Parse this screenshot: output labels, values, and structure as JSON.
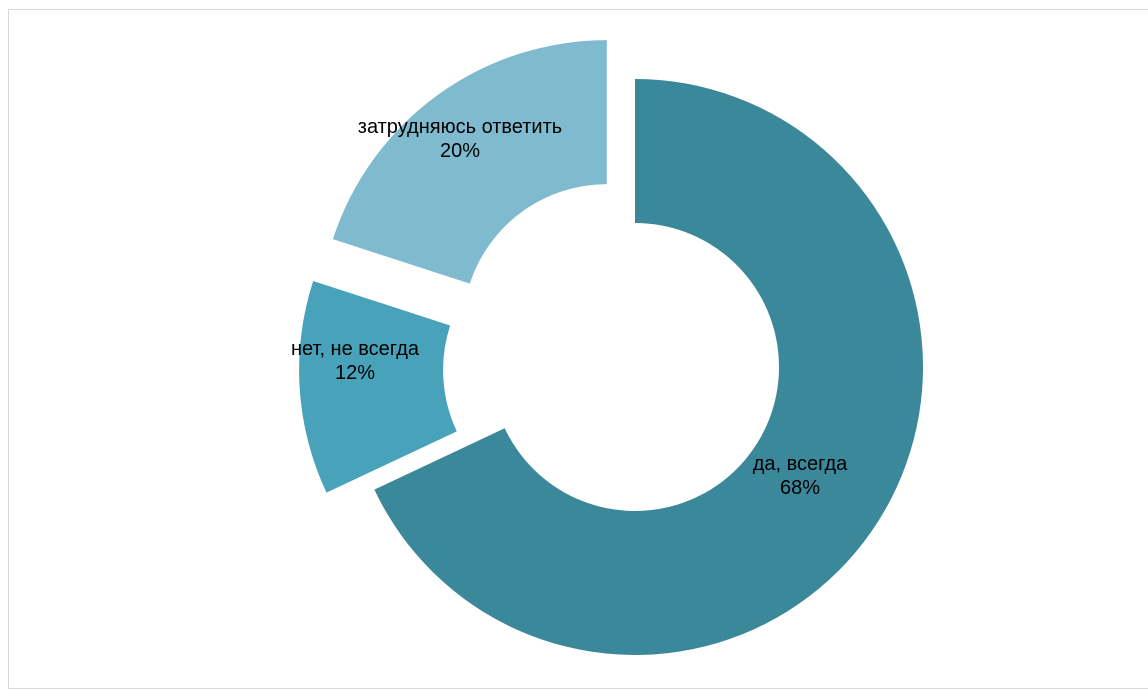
{
  "chart_data": {
    "type": "pie",
    "variant": "donut",
    "exploded": true,
    "title": "",
    "slices": [
      {
        "label": "да, всегда",
        "value": 68,
        "value_label": "68%",
        "color": "#3c889b"
      },
      {
        "label": "нет, не всегда",
        "value": 12,
        "value_label": "12%",
        "color": "#48a2b9"
      },
      {
        "label": "затрудняюсь ответить",
        "value": 20,
        "value_label": "20%",
        "color": "#7fbace"
      }
    ],
    "legend": "none"
  }
}
